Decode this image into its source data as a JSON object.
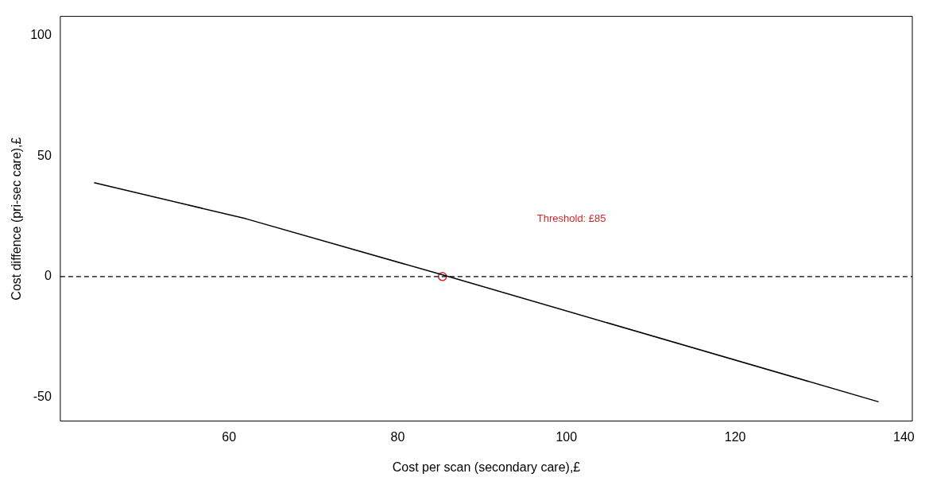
{
  "chart_data": {
    "type": "line",
    "xlabel": "Cost per scan (secondary care),£",
    "ylabel": "Cost diffence (pri-sec care),£",
    "xlim": [
      40,
      141
    ],
    "ylim": [
      -60,
      108
    ],
    "xticks": [
      60,
      80,
      100,
      120,
      140
    ],
    "yticks": [
      -50,
      0,
      50,
      100
    ],
    "grid": false,
    "legend": false,
    "series": [
      {
        "type": "line",
        "color": "#000000",
        "marker": "none",
        "line_style": "solid",
        "x": [
          44,
          62,
          86,
          137
        ],
        "values": [
          39,
          24,
          0,
          -52
        ]
      },
      {
        "type": "scatter",
        "color": "#d62728",
        "marker": "circle",
        "x": [
          85.3
        ],
        "values": [
          0
        ]
      }
    ],
    "ref_lines": [
      {
        "axis": "y",
        "value": 0,
        "line_style": "dashed",
        "color": "#000000"
      }
    ],
    "annotations": [
      "Threshold: £85"
    ]
  }
}
